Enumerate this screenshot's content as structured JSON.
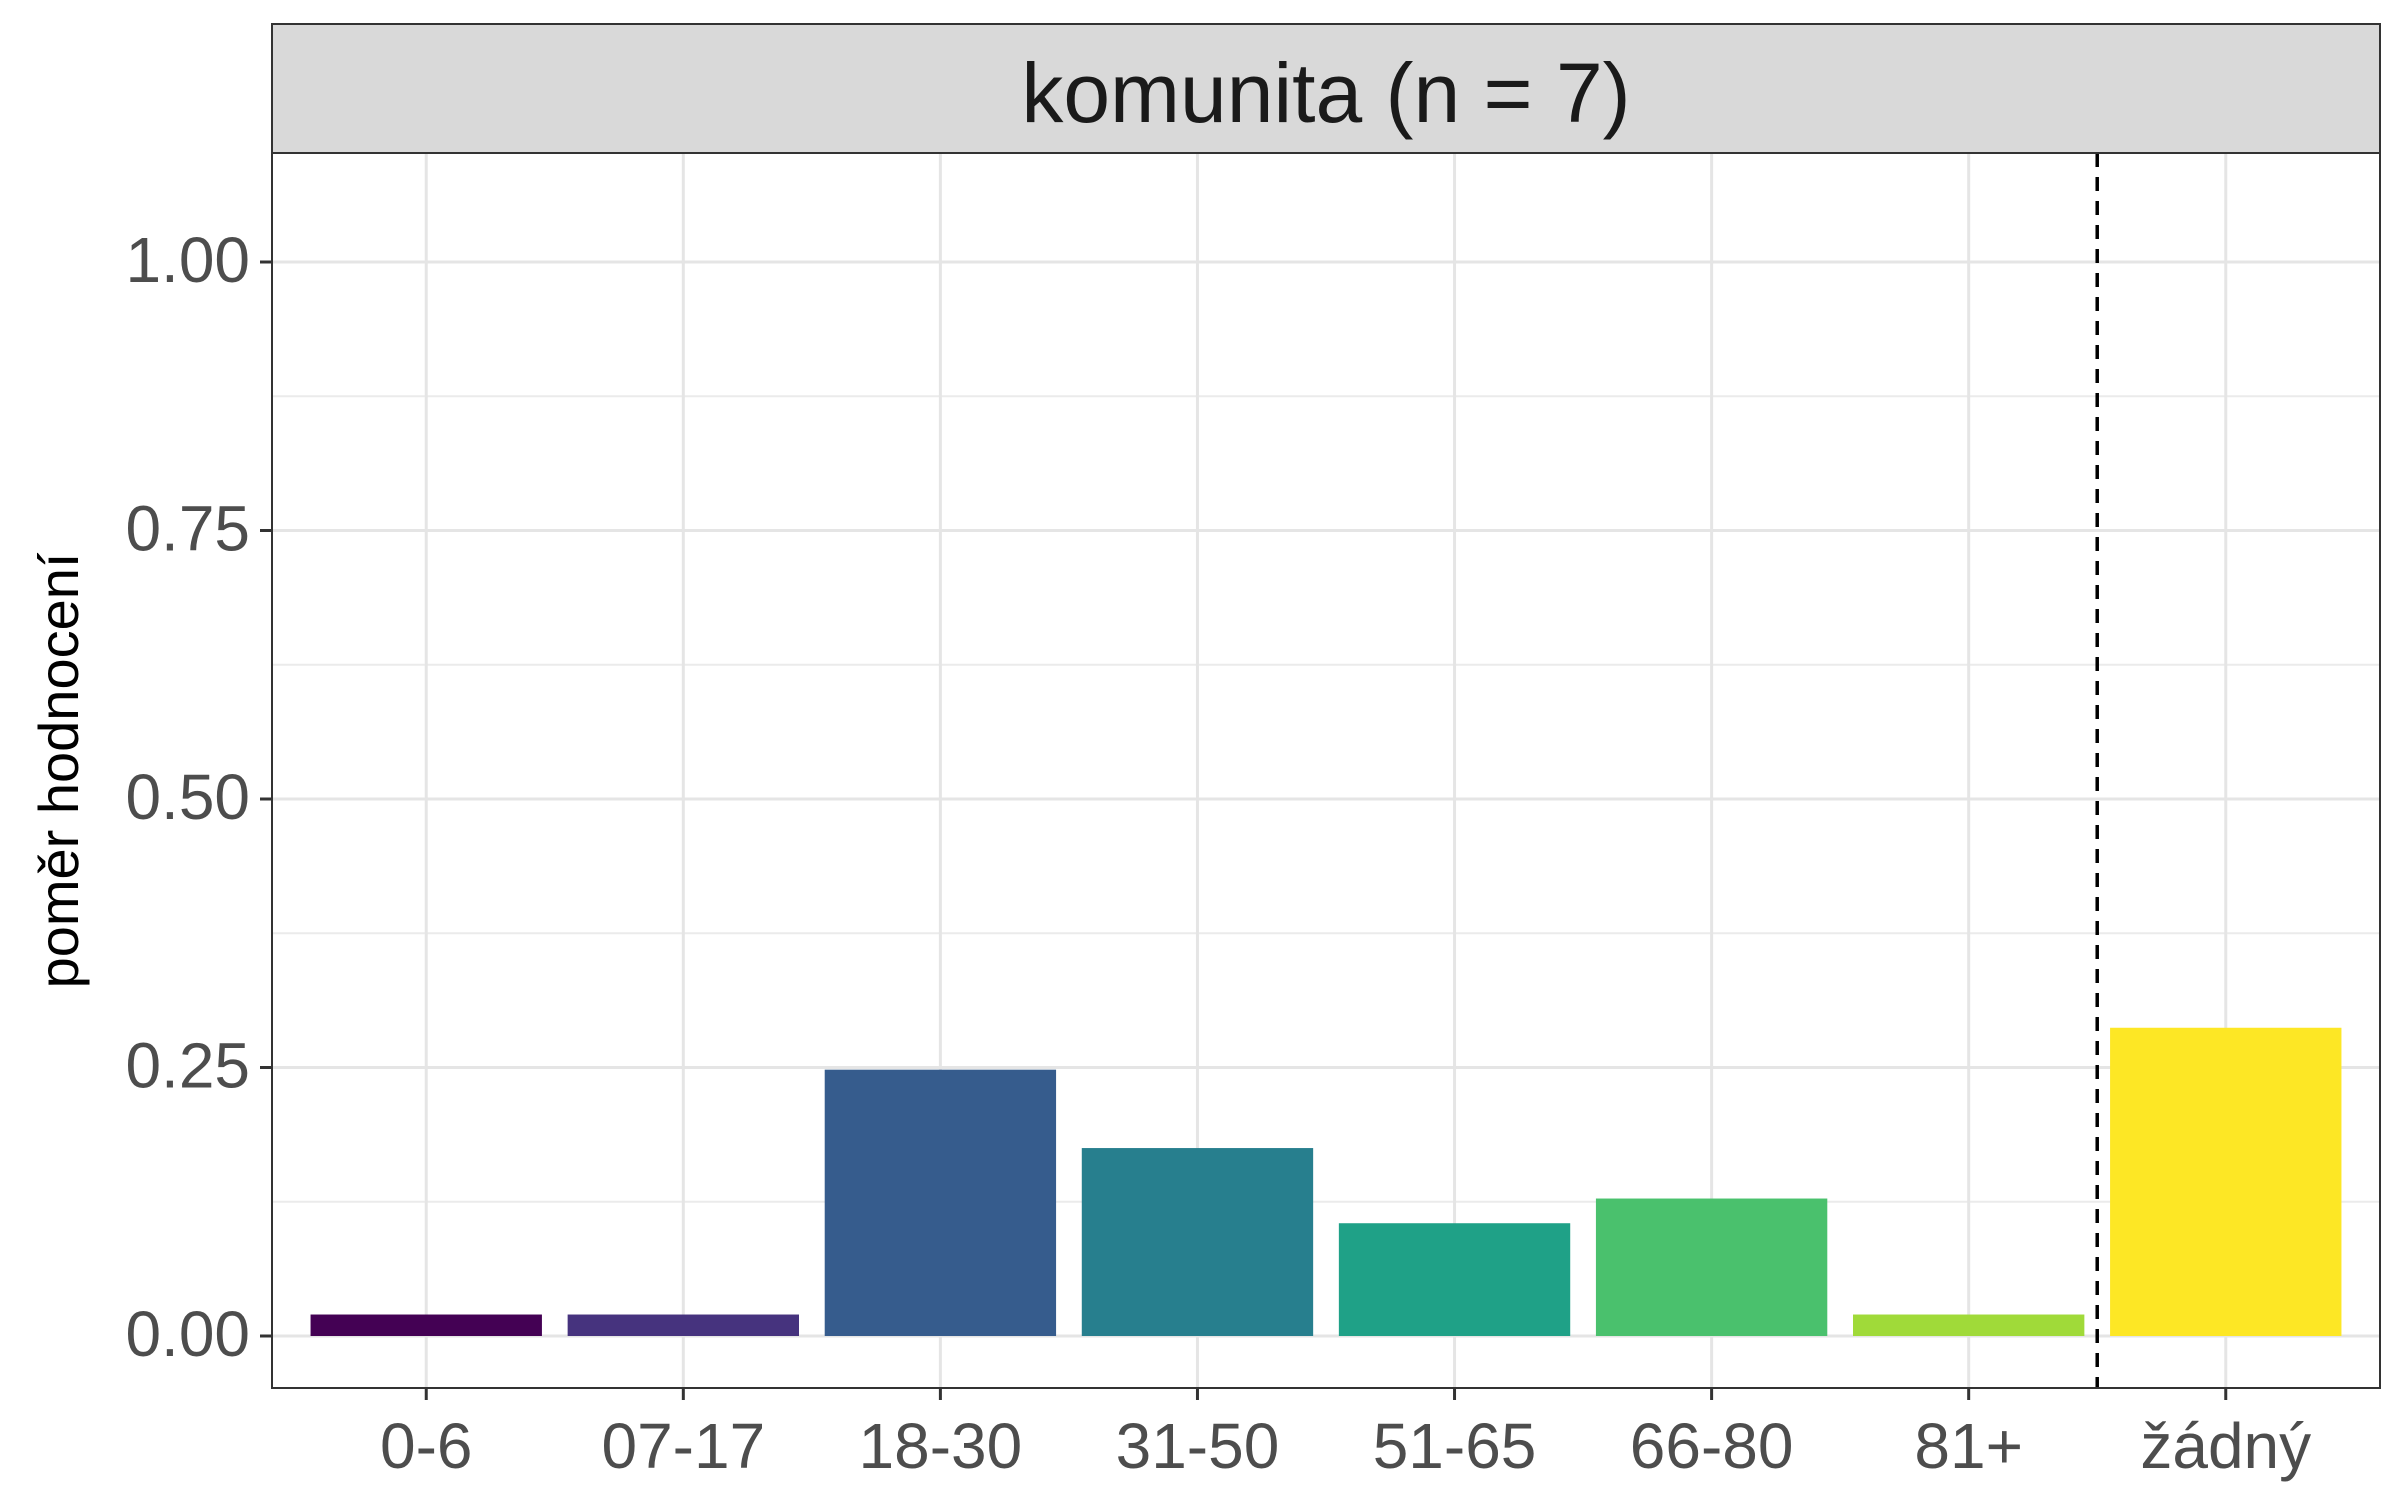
{
  "chart_data": {
    "type": "bar",
    "facet_title": "komunita (n = 7)",
    "ylabel": "poměr hodnocení",
    "xlabel": "",
    "categories": [
      "0-6",
      "07-17",
      "18-30",
      "31-50",
      "51-65",
      "66-80",
      "81+",
      "žádný"
    ],
    "values": [
      0.02,
      0.02,
      0.248,
      0.175,
      0.105,
      0.128,
      0.02,
      0.287
    ],
    "colors": [
      "#440154",
      "#46337e",
      "#365c8d",
      "#277f8e",
      "#1fa187",
      "#4ac16d",
      "#a0da39",
      "#fde725"
    ],
    "ylim": [
      0,
      1.1
    ],
    "yticks": [
      0,
      0.25,
      0.5,
      0.75,
      1.0
    ],
    "ytick_labels": [
      "0.00",
      "0.25",
      "0.50",
      "0.75",
      "1.00"
    ],
    "yminor_ticks": [
      0.125,
      0.375,
      0.625,
      0.875
    ],
    "reference_line": {
      "style": "dashed",
      "between": [
        "81+",
        "žádný"
      ]
    },
    "grid": true,
    "legend": "none"
  }
}
